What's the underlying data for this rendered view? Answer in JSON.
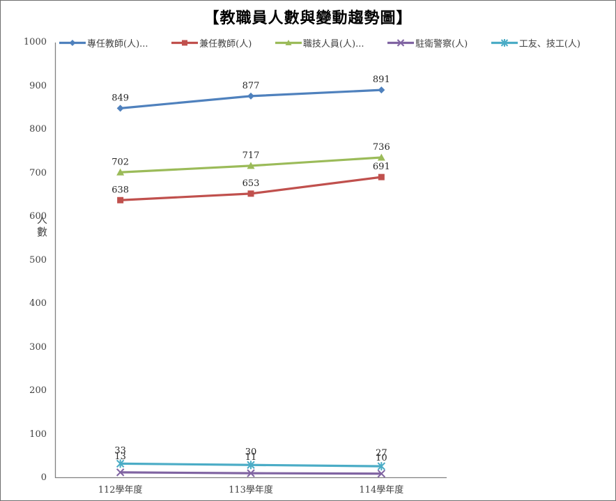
{
  "title": "【教職員人數與變動趨勢圖】",
  "chart_data": {
    "type": "line",
    "title": "【教職員人數與變動趨勢圖】",
    "categories": [
      "112學年度",
      "113學年度",
      "114學年度"
    ],
    "series": [
      {
        "name": "專任教師(人)...",
        "values": [
          849,
          877,
          891
        ],
        "color": "#4F81BD",
        "marker": "diamond"
      },
      {
        "name": "兼任教師(人)",
        "values": [
          638,
          653,
          691
        ],
        "color": "#C0504D",
        "marker": "square"
      },
      {
        "name": "職技人員(人)...",
        "values": [
          702,
          717,
          736
        ],
        "color": "#9BBB59",
        "marker": "triangle"
      },
      {
        "name": "駐衛警察(人)",
        "values": [
          13,
          11,
          10
        ],
        "color": "#8064A2",
        "marker": "x"
      },
      {
        "name": "工友、技工(人)",
        "values": [
          33,
          30,
          27
        ],
        "color": "#4BACC6",
        "marker": "star"
      }
    ],
    "xlabel": "",
    "ylabel": "人數",
    "ylim": [
      0,
      1000
    ],
    "ytick_step": 100,
    "grid": false,
    "legend_position": "top-horizontal",
    "data_labels": "above",
    "axis_color": "#808080"
  }
}
